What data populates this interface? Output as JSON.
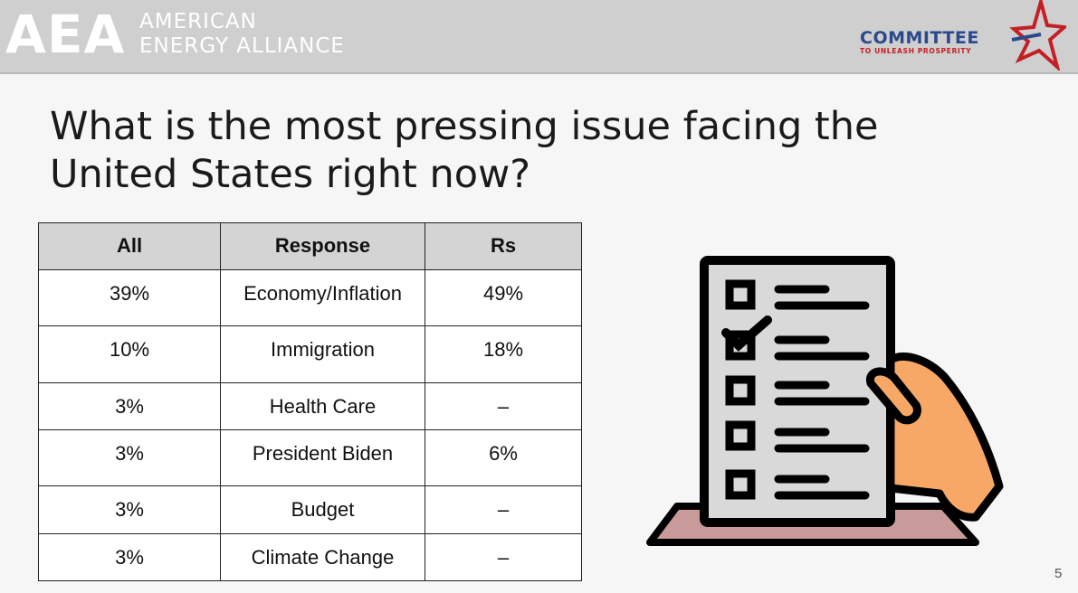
{
  "header": {
    "aea_mark": "AEA",
    "aea_name_line1": "AMERICAN",
    "aea_name_line2": "ENERGY ALLIANCE",
    "committee_word": "COMMITTEE",
    "committee_tagline": "TO UNLEASH PROSPERITY"
  },
  "title": "What is the most pressing issue facing the United States right now?",
  "table": {
    "headers": [
      "All",
      "Response",
      "Rs"
    ],
    "rows": [
      {
        "all": "39%",
        "response": "Economy/Inflation",
        "rs": "49%"
      },
      {
        "all": "10%",
        "response": "Immigration",
        "rs": "18%"
      },
      {
        "all": "3%",
        "response": "Health Care",
        "rs": "–"
      },
      {
        "all": "3%",
        "response": "President Biden",
        "rs": "6%"
      },
      {
        "all": "3%",
        "response": "Budget",
        "rs": "–"
      },
      {
        "all": "3%",
        "response": "Climate Change",
        "rs": "–"
      }
    ]
  },
  "illustration": {
    "icon": "checklist-hand-icon",
    "colors": {
      "paper": "#d9d9d9",
      "hand": "#f7a866",
      "base": "#c99a9a",
      "ink": "#000000"
    }
  },
  "page_number": "5"
}
